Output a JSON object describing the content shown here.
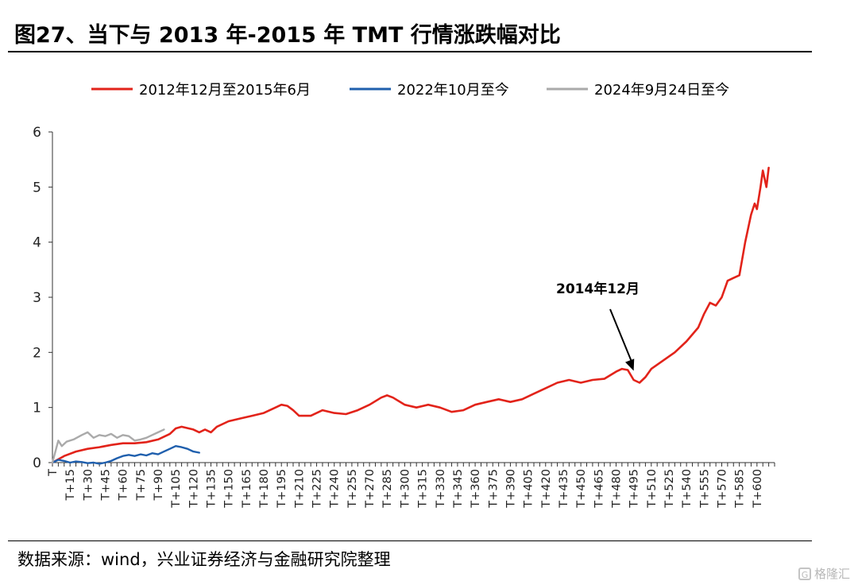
{
  "title": "图27、当下与 2013 年-2015 年 TMT 行情涨跌幅对比",
  "source": "数据来源：wind，兴业证券经济与金融研究院整理",
  "watermark": "格隆汇",
  "chart_data": {
    "type": "line",
    "title": "",
    "xlabel": "",
    "ylabel": "",
    "ylim": [
      0,
      6
    ],
    "yticks": [
      "0",
      "1",
      "2",
      "3",
      "4",
      "5",
      "6"
    ],
    "xticks": [
      "T",
      "T+15",
      "T+30",
      "T+45",
      "T+60",
      "T+75",
      "T+90",
      "T+105",
      "T+120",
      "T+135",
      "T+150",
      "T+165",
      "T+180",
      "T+195",
      "T+210",
      "T+225",
      "T+240",
      "T+255",
      "T+270",
      "T+285",
      "T+300",
      "T+315",
      "T+330",
      "T+345",
      "T+360",
      "T+375",
      "T+390",
      "T+405",
      "T+420",
      "T+435",
      "T+450",
      "T+465",
      "T+480",
      "T+495",
      "T+510",
      "T+525",
      "T+540",
      "T+555",
      "T+570",
      "T+585",
      "T+600"
    ],
    "xlim": [
      0,
      615
    ],
    "grid": false,
    "legend": "top",
    "series": [
      {
        "name": "2012年12月至2015年6月",
        "color": "#e2231a",
        "x": [
          0,
          10,
          20,
          30,
          40,
          50,
          60,
          70,
          80,
          90,
          100,
          105,
          110,
          120,
          125,
          130,
          135,
          140,
          150,
          160,
          170,
          180,
          190,
          195,
          200,
          205,
          210,
          220,
          230,
          240,
          250,
          260,
          270,
          280,
          285,
          290,
          300,
          310,
          320,
          330,
          340,
          350,
          360,
          370,
          380,
          390,
          400,
          410,
          420,
          430,
          440,
          450,
          460,
          470,
          480,
          485,
          490,
          495,
          500,
          505,
          510,
          520,
          530,
          540,
          550,
          555,
          560,
          565,
          570,
          575,
          580,
          585,
          590,
          595,
          598,
          600,
          603,
          605,
          608,
          610
        ],
        "y": [
          0.0,
          0.12,
          0.2,
          0.25,
          0.28,
          0.32,
          0.35,
          0.35,
          0.37,
          0.42,
          0.52,
          0.62,
          0.65,
          0.6,
          0.55,
          0.6,
          0.55,
          0.65,
          0.75,
          0.8,
          0.85,
          0.9,
          1.0,
          1.05,
          1.03,
          0.95,
          0.85,
          0.85,
          0.95,
          0.9,
          0.88,
          0.95,
          1.05,
          1.18,
          1.22,
          1.18,
          1.05,
          1.0,
          1.05,
          1.0,
          0.92,
          0.95,
          1.05,
          1.1,
          1.15,
          1.1,
          1.15,
          1.25,
          1.35,
          1.45,
          1.5,
          1.45,
          1.5,
          1.52,
          1.65,
          1.7,
          1.68,
          1.5,
          1.45,
          1.55,
          1.7,
          1.85,
          2.0,
          2.2,
          2.45,
          2.7,
          2.9,
          2.85,
          3.0,
          3.3,
          3.35,
          3.4,
          4.0,
          4.5,
          4.7,
          4.6,
          5.0,
          5.3,
          5.0,
          5.35
        ]
      },
      {
        "name": "2022年10月至今",
        "color": "#1f5fad",
        "x": [
          0,
          5,
          10,
          15,
          20,
          25,
          30,
          35,
          40,
          45,
          50,
          55,
          60,
          65,
          70,
          75,
          80,
          85,
          90,
          95,
          100,
          105,
          110,
          115,
          120,
          125
        ],
        "y": [
          0.0,
          0.05,
          0.03,
          0.0,
          0.02,
          0.01,
          -0.01,
          0.0,
          -0.02,
          0.0,
          0.03,
          0.08,
          0.12,
          0.14,
          0.12,
          0.15,
          0.13,
          0.17,
          0.15,
          0.2,
          0.25,
          0.3,
          0.28,
          0.25,
          0.2,
          0.18
        ]
      },
      {
        "name": "2024年9月24日至今",
        "color": "#aaaaaa",
        "x": [
          0,
          5,
          8,
          12,
          18,
          25,
          30,
          35,
          40,
          45,
          50,
          55,
          60,
          65,
          70,
          75,
          80,
          85,
          90,
          95
        ],
        "y": [
          0.0,
          0.4,
          0.3,
          0.38,
          0.42,
          0.5,
          0.55,
          0.45,
          0.5,
          0.48,
          0.52,
          0.45,
          0.5,
          0.48,
          0.4,
          0.42,
          0.45,
          0.5,
          0.55,
          0.6
        ]
      }
    ],
    "annotation": {
      "text": "2014年12月",
      "x": 495,
      "y": 1.55
    }
  }
}
